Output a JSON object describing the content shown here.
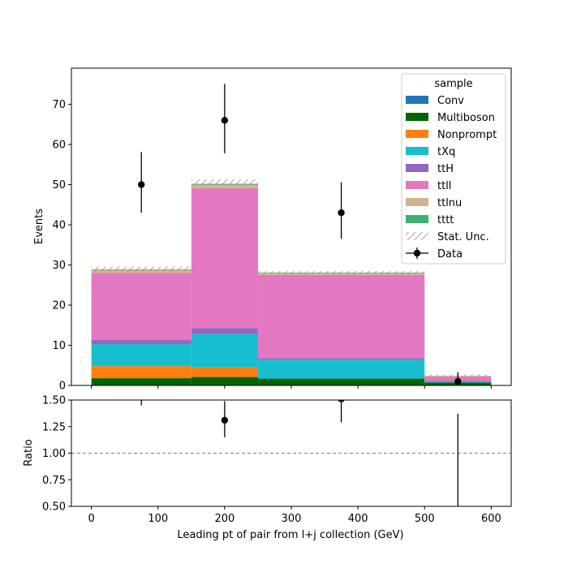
{
  "chart_data": {
    "type": "bar",
    "stacked": true,
    "x_bin_edges": [
      0,
      150,
      250,
      500,
      600
    ],
    "xlabel": "Leading pt of pair from l+j collection (GeV)",
    "xlim": [
      -30,
      630
    ],
    "xticks": [
      0,
      100,
      200,
      300,
      400,
      500,
      600
    ],
    "main": {
      "ylabel": "Events",
      "ylim": [
        0,
        79
      ],
      "yticks": [
        0,
        10,
        20,
        30,
        40,
        50,
        60,
        70
      ],
      "series": [
        {
          "name": "Conv",
          "color": "#1f77b4",
          "values": [
            0.1,
            0.1,
            0.1,
            0.0
          ]
        },
        {
          "name": "Multiboson",
          "color": "#006400",
          "values": [
            1.7,
            2.0,
            1.6,
            0.7
          ]
        },
        {
          "name": "Nonprompt",
          "color": "#ff7f0e",
          "values": [
            3.0,
            2.4,
            0.0,
            0.0
          ]
        },
        {
          "name": "tXq",
          "color": "#17becf",
          "values": [
            5.5,
            8.3,
            4.7,
            0.3
          ]
        },
        {
          "name": "ttH",
          "color": "#9467bd",
          "values": [
            1.0,
            1.5,
            0.4,
            0.1
          ]
        },
        {
          "name": "ttll",
          "color": "#e377c2",
          "values": [
            16.7,
            34.8,
            20.7,
            1.1
          ]
        },
        {
          "name": "ttlnu",
          "color": "#d2b48c",
          "values": [
            0.8,
            0.9,
            0.5,
            0.2
          ]
        },
        {
          "name": "tttt",
          "color": "#3cb371",
          "values": [
            0.1,
            0.2,
            0.1,
            0.0
          ]
        }
      ],
      "stat_unc": [
        {
          "low": 28.5,
          "high": 29.6
        },
        {
          "low": 49.9,
          "high": 51.3
        },
        {
          "low": 27.7,
          "high": 28.5
        },
        {
          "low": 2.2,
          "high": 2.7
        }
      ],
      "data": {
        "name": "Data",
        "x": [
          75,
          200,
          375,
          550
        ],
        "y": [
          50,
          66,
          43,
          1
        ],
        "err_low": [
          7,
          8.2,
          6.5,
          0.8
        ],
        "err_high": [
          8.1,
          9.1,
          7.6,
          2.3
        ]
      }
    },
    "ratio": {
      "ylabel": "Ratio",
      "ylim": [
        0.5,
        1.5
      ],
      "yticks": [
        0.5,
        0.75,
        1.0,
        1.25,
        1.5
      ],
      "ytick_labels": [
        "0.50",
        "0.75",
        "1.00",
        "1.25",
        "1.50"
      ],
      "reference_line": 1.0,
      "points": [
        {
          "x": 75,
          "y": 1.69,
          "err_low": 0.24,
          "err_high": 0.27
        },
        {
          "x": 200,
          "y": 1.31,
          "err_low": 0.16,
          "err_high": 0.18
        },
        {
          "x": 375,
          "y": 1.51,
          "err_low": 0.22,
          "err_high": 0.26
        },
        {
          "x": 550,
          "y": 0.37,
          "err_low": 0.3,
          "err_high": 1.0
        }
      ]
    },
    "legend": {
      "title": "sample",
      "placement": "top-right",
      "entries": [
        "Conv",
        "Multiboson",
        "Nonprompt",
        "tXq",
        "ttH",
        "ttll",
        "ttlnu",
        "tttt",
        "Stat. Unc.",
        "Data"
      ]
    }
  }
}
